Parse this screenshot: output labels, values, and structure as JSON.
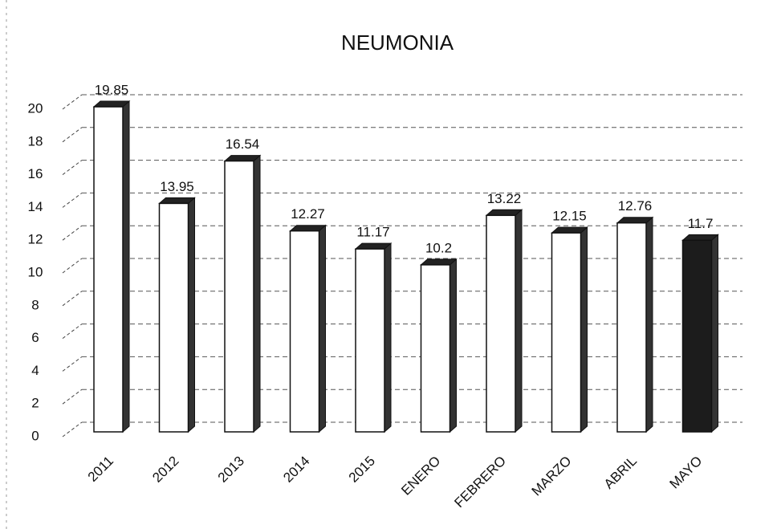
{
  "chart_data": {
    "type": "bar3d",
    "title": "NEUMONIA",
    "categories": [
      "2011",
      "2012",
      "2013",
      "2014",
      "2015",
      "ENERO",
      "FEBRERO",
      "MARZO",
      "ABRIL",
      "MAYO"
    ],
    "values": [
      19.85,
      13.95,
      16.54,
      12.27,
      11.17,
      10.2,
      13.22,
      12.15,
      12.76,
      11.7
    ],
    "colors": [
      "#ffffff",
      "#ffffff",
      "#ffffff",
      "#ffffff",
      "#ffffff",
      "#ffffff",
      "#ffffff",
      "#ffffff",
      "#ffffff",
      "#1c1c1c"
    ],
    "ylim": [
      0,
      20
    ],
    "yticks": [
      0,
      2,
      4,
      6,
      8,
      10,
      12,
      14,
      16,
      18,
      20
    ],
    "grid": true
  }
}
